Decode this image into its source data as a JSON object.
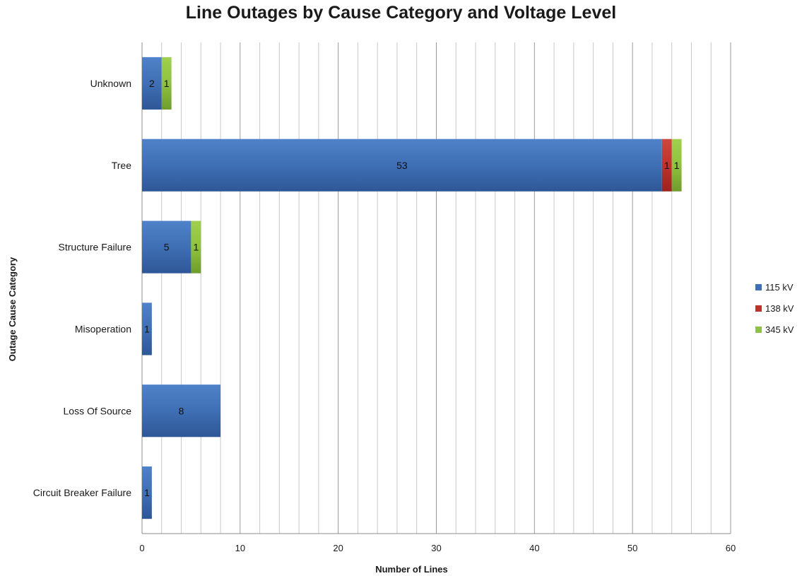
{
  "chart_data": {
    "type": "bar",
    "orientation": "horizontal",
    "stacked": true,
    "title": "Line Outages by Cause Category and Voltage Level",
    "xlabel": "Number of Lines",
    "ylabel": "Outage Cause Category",
    "xlim": [
      0,
      60
    ],
    "x_ticks": [
      "0",
      "10",
      "20",
      "30",
      "40",
      "50",
      "60"
    ],
    "grid": true,
    "legend_position": "right",
    "categories": [
      "Unknown",
      "Tree",
      "Structure Failure",
      "Misoperation",
      "Loss Of Source",
      "Circuit Breaker Failure"
    ],
    "series": [
      {
        "name": "115 kV",
        "color": "#3f6fb5",
        "values": [
          2,
          53,
          5,
          1,
          8,
          1
        ]
      },
      {
        "name": "138 kV",
        "color": "#c0312d",
        "values": [
          0,
          1,
          0,
          0,
          0,
          0
        ]
      },
      {
        "name": "345 kV",
        "color": "#8fc23e",
        "values": [
          1,
          1,
          1,
          0,
          0,
          0
        ]
      }
    ]
  }
}
